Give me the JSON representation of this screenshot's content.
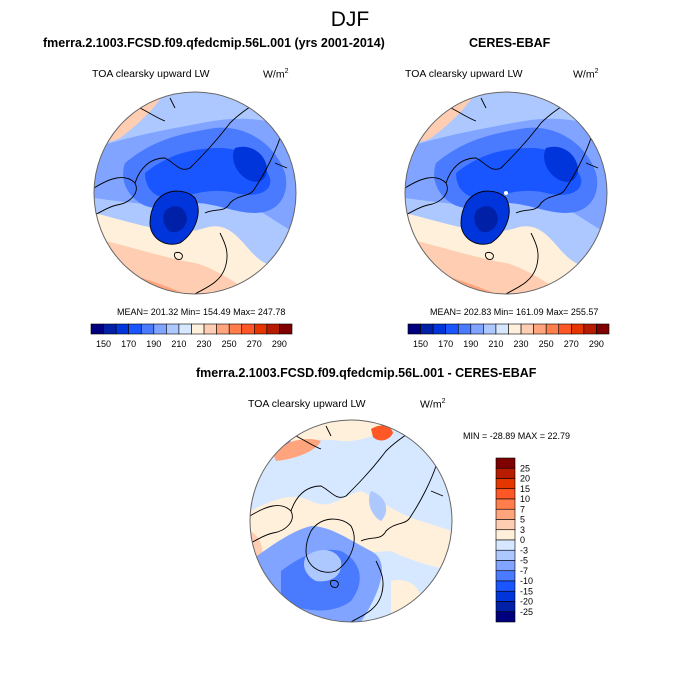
{
  "figure": {
    "title": "DJF"
  },
  "chart_data": [
    {
      "type": "heatmap",
      "projection": "north-polar-stereographic",
      "title": "fmerra.2.1003.FCSD.f09.qfedcmip.56L.001 (yrs 2001-2014)",
      "variable": "TOA clearsky upward LW",
      "units": "W/m",
      "units_sup": "2",
      "stats": "MEAN= 201.32  Min= 154.49  Max=  247.78",
      "mean": 201.32,
      "min": 154.49,
      "max": 247.78,
      "colorbar": {
        "orientation": "horizontal",
        "levels": [
          150,
          160,
          170,
          180,
          190,
          200,
          210,
          220,
          230,
          240,
          250,
          260,
          270,
          280,
          290
        ],
        "tick_labels": [
          "150",
          "170",
          "190",
          "210",
          "230",
          "250",
          "270",
          "290"
        ],
        "colors": [
          "#00007f",
          "#0020a8",
          "#0035dc",
          "#1a56ff",
          "#4a7bff",
          "#80a4ff",
          "#adc8ff",
          "#d6e8ff",
          "#fff0dc",
          "#ffcdb2",
          "#ffa47c",
          "#ff7e4c",
          "#ff5726",
          "#e63600",
          "#b81c00",
          "#7f0000"
        ]
      }
    },
    {
      "type": "heatmap",
      "projection": "north-polar-stereographic",
      "title": "CERES-EBAF",
      "variable": "TOA clearsky upward LW",
      "units": "W/m",
      "units_sup": "2",
      "stats": "MEAN= 202.83  Min= 161.09  Max=  255.57",
      "mean": 202.83,
      "min": 161.09,
      "max": 255.57,
      "colorbar": {
        "orientation": "horizontal",
        "levels": [
          150,
          160,
          170,
          180,
          190,
          200,
          210,
          220,
          230,
          240,
          250,
          260,
          270,
          280,
          290
        ],
        "tick_labels": [
          "150",
          "170",
          "190",
          "210",
          "230",
          "250",
          "270",
          "290"
        ],
        "colors": [
          "#00007f",
          "#0020a8",
          "#0035dc",
          "#1a56ff",
          "#4a7bff",
          "#80a4ff",
          "#adc8ff",
          "#d6e8ff",
          "#fff0dc",
          "#ffcdb2",
          "#ffa47c",
          "#ff7e4c",
          "#ff5726",
          "#e63600",
          "#b81c00",
          "#7f0000"
        ]
      }
    },
    {
      "type": "heatmap",
      "projection": "north-polar-stereographic",
      "title": "fmerra.2.1003.FCSD.f09.qfedcmip.56L.001 - CERES-EBAF",
      "variable": "TOA clearsky upward LW",
      "units": "W/m",
      "units_sup": "2",
      "stats": "MIN = -28.89 MAX =  22.79",
      "min": -28.89,
      "max": 22.79,
      "colorbar": {
        "orientation": "vertical",
        "levels": [
          -25,
          -20,
          -15,
          -10,
          -7,
          -5,
          -3,
          0,
          3,
          5,
          7,
          10,
          15,
          20,
          25
        ],
        "tick_labels": [
          "25",
          "20",
          "15",
          "10",
          "7",
          "5",
          "3",
          "0",
          "-3",
          "-5",
          "-7",
          "-10",
          "-15",
          "-20",
          "-25"
        ],
        "colors": [
          "#7f0000",
          "#b81c00",
          "#e63600",
          "#ff5726",
          "#ff7e4c",
          "#ffa47c",
          "#ffcdb2",
          "#fff0dc",
          "#d6e8ff",
          "#adc8ff",
          "#80a4ff",
          "#4a7bff",
          "#1a56ff",
          "#0035dc",
          "#0020a8",
          "#00007f"
        ]
      }
    }
  ]
}
